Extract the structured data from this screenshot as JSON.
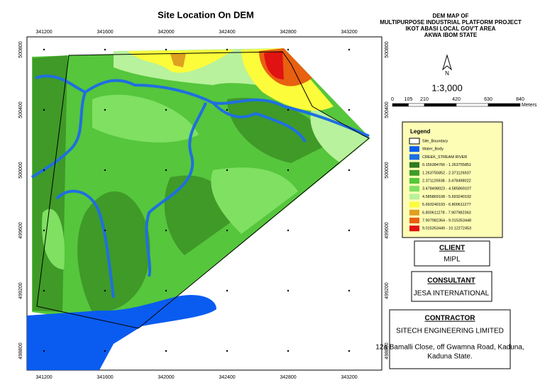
{
  "map": {
    "title": "Site Location On DEM",
    "x_coords": [
      341200,
      341600,
      342000,
      342400,
      342800,
      343200
    ],
    "y_coords": [
      500800,
      500400,
      500000,
      499600,
      499200,
      498800
    ]
  },
  "header": {
    "lines": [
      "DEM MAP OF",
      "MULTIPURPOSE INDUSTRIAL PLATFORM PROJECT",
      "IKOT ABASI LOCAL GOV'T AREA",
      "AKWA IBOM STATE"
    ]
  },
  "north": "N",
  "scale": {
    "ratio": "1:3,000",
    "ticks": [
      0,
      105,
      210,
      420,
      630,
      840
    ],
    "unit": "Meters"
  },
  "legend": {
    "title": "Legend",
    "items": [
      {
        "label": "Site_Boundary",
        "color": "#ffffff"
      },
      {
        "label": "Water_Body",
        "color": "#0a5cf0"
      },
      {
        "label": "CREEK_STREAM RIVER",
        "color": "#1f6fe0"
      },
      {
        "label": "0.156384766 - 1.263755851",
        "color": "#2f7a22"
      },
      {
        "label": "1.263755852 - 2.371126937",
        "color": "#3f9a28"
      },
      {
        "label": "2.371126938 - 3.478498022",
        "color": "#56c63c"
      },
      {
        "label": "3.478498023 - 4.585869107",
        "color": "#7fe062"
      },
      {
        "label": "4.585869108 - 5.693240192",
        "color": "#b8f29c"
      },
      {
        "label": "5.693240193 - 6.800611277",
        "color": "#fcfc3a"
      },
      {
        "label": "6.800611278 - 7.907982363",
        "color": "#e0a020"
      },
      {
        "label": "7.907982364 - 9.015353448",
        "color": "#e86010"
      },
      {
        "label": "9.015353449 - 10.12272453",
        "color": "#e01212"
      }
    ]
  },
  "client": {
    "heading": "CLIENT",
    "name": "MIPL"
  },
  "consultant": {
    "heading": "CONSULTANT",
    "name": "JESA INTERNATIONAL"
  },
  "contractor": {
    "heading": "CONTRACTOR",
    "name": "SITECH ENGINEERING LIMITED",
    "address": [
      "12a Bamalli Close, off Gwamna Road, Kaduna,",
      "Kaduna State."
    ]
  }
}
